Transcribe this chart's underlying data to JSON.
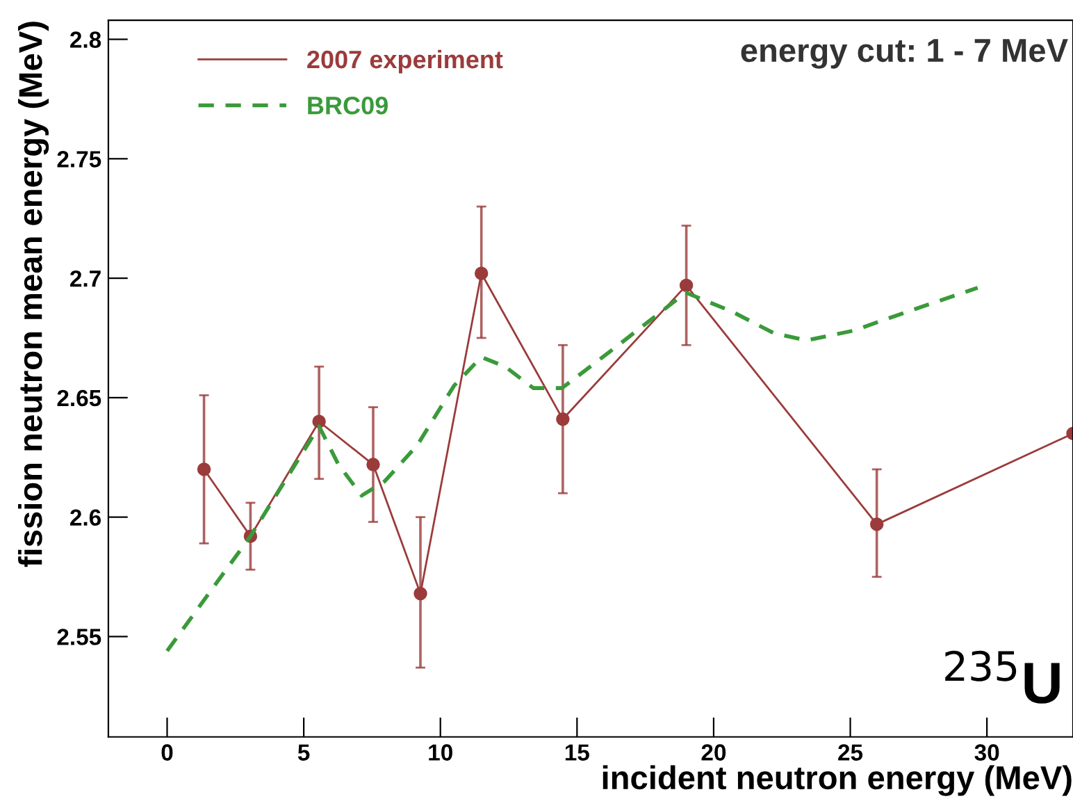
{
  "chart_data": {
    "type": "line",
    "xlabel": "incident neutron energy (MeV)",
    "ylabel": "fission neutron mean energy (MeV)",
    "xlim": [
      -2.15,
      33.15
    ],
    "ylim": [
      2.508,
      2.808
    ],
    "xticks": [
      0,
      5,
      10,
      15,
      20,
      25,
      30
    ],
    "yticks": [
      2.55,
      2.6,
      2.65,
      2.7,
      2.75,
      2.8
    ],
    "grid": false,
    "legend": "top left",
    "annotations": [
      "energy cut: 1 - 7 MeV",
      "$^{235}$U"
    ],
    "series": [
      {
        "name": "2007 experiment",
        "color": "#9b3b3b",
        "marker": "circle",
        "line_style": "solid",
        "x": [
          1.35,
          3.05,
          5.56,
          7.54,
          9.27,
          11.5,
          14.48,
          19.0,
          25.97,
          33.15
        ],
        "values": [
          2.62,
          2.592,
          2.64,
          2.622,
          2.568,
          2.702,
          2.641,
          2.697,
          2.597,
          2.635
        ],
        "errors": [
          [
            2.589,
            2.651
          ],
          [
            2.578,
            2.606
          ],
          [
            2.616,
            2.663
          ],
          [
            2.598,
            2.646
          ],
          [
            2.537,
            2.6
          ],
          [
            2.675,
            2.73
          ],
          [
            2.61,
            2.672
          ],
          [
            2.672,
            2.722
          ],
          [
            2.575,
            2.62
          ],
          null
        ]
      },
      {
        "name": "BRC09",
        "color": "#3a9a3a",
        "marker": "none",
        "line_style": "dashed",
        "x": [
          0.0,
          3.05,
          5.56,
          6.27,
          7.12,
          7.96,
          9.15,
          10.5,
          11.5,
          12.37,
          13.4,
          14.45,
          16.4,
          18.98,
          20.68,
          22.2,
          23.4,
          25.1,
          27.6,
          29.66
        ],
        "values": [
          2.544,
          2.592,
          2.638,
          2.622,
          2.609,
          2.615,
          2.63,
          2.655,
          2.667,
          2.663,
          2.654,
          2.654,
          2.671,
          2.694,
          2.686,
          2.677,
          2.674,
          2.678,
          2.688,
          2.696
        ]
      }
    ]
  }
}
